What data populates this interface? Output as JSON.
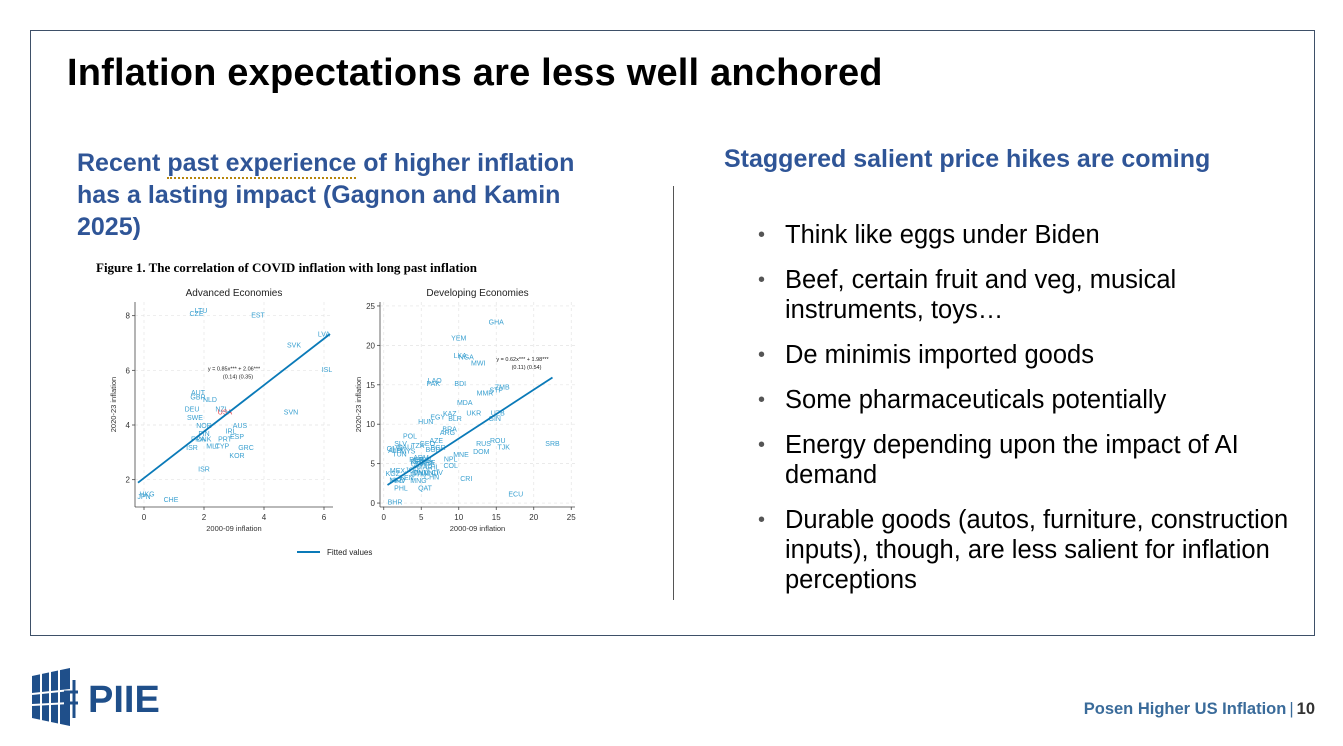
{
  "slide": {
    "title": "Inflation expectations are less well anchored",
    "left_heading_pre": "Recent ",
    "left_heading_underlined": "past experience",
    "left_heading_post": " of higher inflation has a lasting impact (Gagnon and Kamin 2025)",
    "right_heading": "Staggered salient price hikes are coming",
    "bullets": [
      "Think like eggs under Biden",
      "Beef, certain fruit and veg, musical instruments, toys…",
      "De minimis imported goods",
      "Some pharmaceuticals potentially",
      "Energy depending upon the impact of AI demand",
      "Durable goods (autos, furniture, construction inputs), though, are less salient for inflation perceptions"
    ],
    "bullet_glyph": "•"
  },
  "figure": {
    "caption": "Figure 1. The correlation of COVID inflation with long past inflation",
    "legend_label": "Fitted values",
    "colors": {
      "points": "#3aa0d0",
      "line": "#0a7ab8",
      "highlight": "#e8424a"
    }
  },
  "chart_data": [
    {
      "type": "scatter",
      "title": "Advanced Economies",
      "xlabel": "2000-09 inflation",
      "ylabel": "2020-23 inflation",
      "xlim": [
        -0.3,
        6.3
      ],
      "ylim": [
        1.0,
        8.5
      ],
      "xticks": [
        0,
        2,
        4,
        6
      ],
      "yticks": [
        2,
        4,
        6,
        8
      ],
      "grid": true,
      "equation": "y = 0.85x*** + 2.06***",
      "se": "(0.14)    (0.35)",
      "fit": {
        "slope": 0.85,
        "intercept": 2.06,
        "x_range": [
          -0.2,
          6.2
        ]
      },
      "points": [
        {
          "label": "LTU",
          "x": 1.9,
          "y": 8.2
        },
        {
          "label": "CZE",
          "x": 1.75,
          "y": 8.1
        },
        {
          "label": "EST",
          "x": 3.8,
          "y": 8.05
        },
        {
          "label": "LVA",
          "x": 6.0,
          "y": 7.35
        },
        {
          "label": "SVK",
          "x": 5.0,
          "y": 6.95
        },
        {
          "label": "ISL",
          "x": 6.1,
          "y": 6.05
        },
        {
          "label": "AUT",
          "x": 1.8,
          "y": 5.2
        },
        {
          "label": "GBR",
          "x": 1.8,
          "y": 5.05
        },
        {
          "label": "NLD",
          "x": 2.2,
          "y": 4.95
        },
        {
          "label": "DEU",
          "x": 1.6,
          "y": 4.6
        },
        {
          "label": "NZL",
          "x": 2.6,
          "y": 4.6
        },
        {
          "label": "USA",
          "x": 2.7,
          "y": 4.5,
          "highlight": true
        },
        {
          "label": "SVN",
          "x": 4.9,
          "y": 4.5
        },
        {
          "label": "SWE",
          "x": 1.7,
          "y": 4.3
        },
        {
          "label": "NOR",
          "x": 2.0,
          "y": 4.0
        },
        {
          "label": "AUS",
          "x": 3.2,
          "y": 4.0
        },
        {
          "label": "IRL",
          "x": 2.9,
          "y": 3.8
        },
        {
          "label": "FIN",
          "x": 2.0,
          "y": 3.7
        },
        {
          "label": "ESP",
          "x": 3.1,
          "y": 3.6
        },
        {
          "label": "PRT",
          "x": 2.7,
          "y": 3.5
        },
        {
          "label": "DNK",
          "x": 2.0,
          "y": 3.5
        },
        {
          "label": "FRA",
          "x": 1.8,
          "y": 3.5
        },
        {
          "label": "MLT",
          "x": 2.3,
          "y": 3.25
        },
        {
          "label": "CYP",
          "x": 2.6,
          "y": 3.25
        },
        {
          "label": "GRC",
          "x": 3.4,
          "y": 3.2
        },
        {
          "label": "CHE",
          "x": 0.9,
          "y": 1.3
        },
        {
          "label": "KOR",
          "x": 3.1,
          "y": 2.9
        },
        {
          "label": "ISR",
          "x": 1.6,
          "y": 3.2
        },
        {
          "label": "ISR2",
          "x": 2.0,
          "y": 2.4
        },
        {
          "label": "HKG",
          "x": 0.1,
          "y": 1.5
        },
        {
          "label": "JPN",
          "x": 0.0,
          "y": 1.4
        }
      ]
    },
    {
      "type": "scatter",
      "title": "Developing Economies",
      "xlabel": "2000-09 inflation",
      "ylabel": "2020-23 inflation",
      "xlim": [
        -0.5,
        25.5
      ],
      "ylim": [
        -0.5,
        25.5
      ],
      "xticks": [
        0,
        5,
        10,
        15,
        20,
        25
      ],
      "yticks": [
        0,
        5,
        10,
        15,
        20,
        25
      ],
      "grid": true,
      "equation": "y = 0.62x*** + 1.98***",
      "se": "(0.11)    (0.54)",
      "fit": {
        "slope": 0.62,
        "intercept": 1.98,
        "x_range": [
          0.5,
          22.5
        ]
      },
      "points": [
        {
          "label": "GHA",
          "x": 15.0,
          "y": 23.0
        },
        {
          "label": "YEM",
          "x": 10.0,
          "y": 21.0
        },
        {
          "label": "LKA",
          "x": 10.2,
          "y": 18.8
        },
        {
          "label": "NGA",
          "x": 11.0,
          "y": 18.6
        },
        {
          "label": "MWI",
          "x": 12.6,
          "y": 17.8
        },
        {
          "label": "LAO",
          "x": 6.8,
          "y": 15.6
        },
        {
          "label": "PAK",
          "x": 6.6,
          "y": 15.2
        },
        {
          "label": "BDI",
          "x": 10.2,
          "y": 15.2
        },
        {
          "label": "ZMB",
          "x": 15.8,
          "y": 14.8
        },
        {
          "label": "STP",
          "x": 15.0,
          "y": 14.4
        },
        {
          "label": "MMR",
          "x": 13.5,
          "y": 14.0
        },
        {
          "label": "MDA",
          "x": 10.8,
          "y": 12.8
        },
        {
          "label": "UKR",
          "x": 12.0,
          "y": 11.5
        },
        {
          "label": "UZB",
          "x": 15.2,
          "y": 11.5
        },
        {
          "label": "GIN",
          "x": 14.8,
          "y": 10.8
        },
        {
          "label": "KAZ",
          "x": 8.8,
          "y": 11.4
        },
        {
          "label": "EGY",
          "x": 7.2,
          "y": 11.0
        },
        {
          "label": "BLR",
          "x": 9.5,
          "y": 10.8
        },
        {
          "label": "HUN",
          "x": 5.6,
          "y": 10.4
        },
        {
          "label": "POL",
          "x": 3.5,
          "y": 8.6
        },
        {
          "label": "ARG",
          "x": 8.5,
          "y": 9.0
        },
        {
          "label": "AZE",
          "x": 7.0,
          "y": 8.0
        },
        {
          "label": "RUS",
          "x": 13.3,
          "y": 7.6
        },
        {
          "label": "ROU",
          "x": 15.2,
          "y": 8.0
        },
        {
          "label": "SRB",
          "x": 22.5,
          "y": 7.6
        },
        {
          "label": "TJK",
          "x": 16.0,
          "y": 7.2
        },
        {
          "label": "DOM",
          "x": 13.0,
          "y": 6.6
        },
        {
          "label": "GEO",
          "x": 5.8,
          "y": 7.6
        },
        {
          "label": "MNE",
          "x": 10.3,
          "y": 6.2
        },
        {
          "label": "CRI",
          "x": 11.0,
          "y": 3.2
        },
        {
          "label": "ECU",
          "x": 17.6,
          "y": 1.2
        },
        {
          "label": "QAT",
          "x": 5.5,
          "y": 2.0
        },
        {
          "label": "BHR",
          "x": 1.5,
          "y": 0.2
        }
      ],
      "note": "Dense overlapping cluster of additional country labels near x 0–10, y 1–8 (illegible at source resolution)"
    }
  ],
  "footer": {
    "text": "Posen Higher US Inflation",
    "separator": "|",
    "page_number": "10",
    "logo_text": "PIIE",
    "brand_color": "#1f4f8a"
  }
}
